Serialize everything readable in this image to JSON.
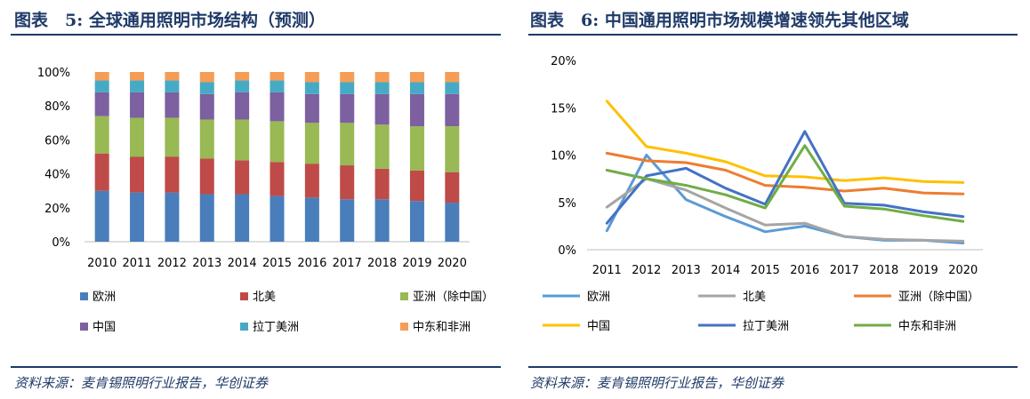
{
  "left": {
    "title": "图表　5:  全球通用照明市场结构（预测）",
    "source": "资料来源：麦肯锡照明行业报告，华创证券",
    "chart_data": {
      "type": "bar",
      "stacked": true,
      "categories": [
        "2010",
        "2011",
        "2012",
        "2013",
        "2014",
        "2015",
        "2016",
        "2017",
        "2018",
        "2019",
        "2020"
      ],
      "yticks": [
        "0%",
        "20%",
        "40%",
        "60%",
        "80%",
        "100%"
      ],
      "ylim": [
        0,
        100
      ],
      "series": [
        {
          "name": "欧洲",
          "color": "#4a7ebb",
          "values": [
            30,
            29,
            29,
            28,
            28,
            27,
            26,
            25,
            25,
            24,
            23
          ]
        },
        {
          "name": "北美",
          "color": "#be4b48",
          "values": [
            22,
            21,
            21,
            21,
            20,
            20,
            20,
            20,
            18,
            18,
            18
          ]
        },
        {
          "name": "亚洲（除中国）",
          "color": "#98b954",
          "values": [
            22,
            23,
            23,
            23,
            24,
            24,
            24,
            25,
            26,
            26,
            27
          ]
        },
        {
          "name": "中国",
          "color": "#7d60a0",
          "values": [
            14,
            15,
            15,
            15,
            16,
            17,
            17,
            17,
            18,
            19,
            19
          ]
        },
        {
          "name": "拉丁美洲",
          "color": "#46aac5",
          "values": [
            7,
            7,
            7,
            7,
            7,
            7,
            7,
            7,
            7,
            7,
            7
          ]
        },
        {
          "name": "中东和非洲",
          "color": "#f59d56",
          "values": [
            5,
            5,
            5,
            6,
            5,
            5,
            6,
            6,
            6,
            6,
            6
          ]
        }
      ]
    }
  },
  "right": {
    "title": "图表　6:  中国通用照明市场规模增速领先其他区域",
    "source": "资料来源：麦肯锡照明行业报告，华创证券",
    "chart_data": {
      "type": "line",
      "x": [
        "2011",
        "2012",
        "2013",
        "2014",
        "2015",
        "2016",
        "2017",
        "2018",
        "2019",
        "2020"
      ],
      "yticks": [
        "0%",
        "5%",
        "10%",
        "15%",
        "20%"
      ],
      "ylim": [
        0,
        20
      ],
      "series": [
        {
          "name": "欧洲",
          "color": "#5b9bd5",
          "values": [
            2.0,
            10.0,
            5.3,
            3.5,
            1.9,
            2.5,
            1.4,
            1.0,
            1.0,
            0.7
          ]
        },
        {
          "name": "北美",
          "color": "#a5a5a5",
          "values": [
            4.5,
            7.5,
            6.3,
            4.4,
            2.6,
            2.8,
            1.4,
            1.1,
            1.0,
            0.9
          ]
        },
        {
          "name": "亚洲（除中国）",
          "color": "#ed7d31",
          "values": [
            10.2,
            9.4,
            9.2,
            8.4,
            6.8,
            6.6,
            6.2,
            6.5,
            6.0,
            5.9
          ]
        },
        {
          "name": "中国",
          "color": "#ffc000",
          "values": [
            15.7,
            10.9,
            10.2,
            9.3,
            7.8,
            7.7,
            7.3,
            7.6,
            7.2,
            7.1
          ]
        },
        {
          "name": "拉丁美洲",
          "color": "#4472c4",
          "values": [
            2.8,
            7.8,
            8.6,
            6.5,
            4.8,
            12.5,
            4.9,
            4.7,
            4.0,
            3.5
          ]
        },
        {
          "name": "中东和非洲",
          "color": "#70ad47",
          "values": [
            8.4,
            7.5,
            6.8,
            5.8,
            4.4,
            11.0,
            4.6,
            4.3,
            3.6,
            3.0
          ]
        }
      ]
    }
  }
}
